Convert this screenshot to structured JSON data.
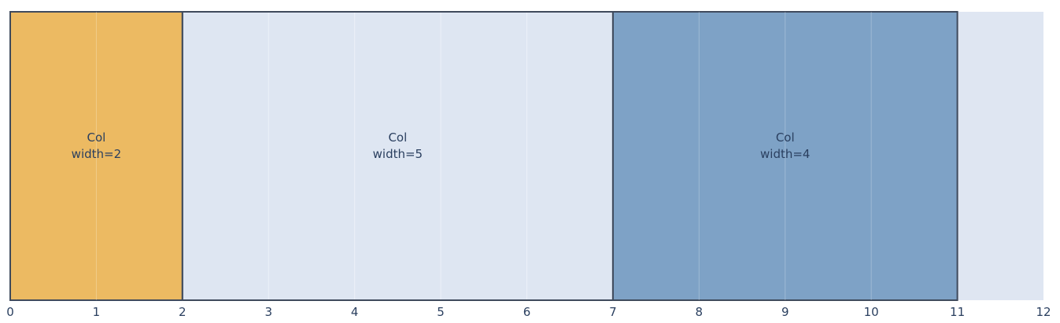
{
  "chart_data": {
    "type": "bar",
    "orientation": "horizontal-spans",
    "xlim": [
      0,
      12
    ],
    "x_ticks": [
      "0",
      "1",
      "2",
      "3",
      "4",
      "5",
      "6",
      "7",
      "8",
      "9",
      "10",
      "11",
      "12"
    ],
    "grid": true,
    "segments": [
      {
        "start": 0,
        "end": 2,
        "label_line1": "Col",
        "label_line2": "width=2",
        "color": "#ecba62"
      },
      {
        "start": 2,
        "end": 7,
        "label_line1": "Col",
        "label_line2": "width=5",
        "color": "#dce6f3"
      },
      {
        "start": 7,
        "end": 11,
        "label_line1": "Col",
        "label_line2": "width=4",
        "color": "#7ea2c6"
      }
    ],
    "colors": {
      "plot_background": "#dfe6f2",
      "gridline": "#ffffff",
      "segment_border": "#3f4a5c",
      "tick_label": "#2a3f5f",
      "segment_label": "#2a3f5f"
    }
  }
}
